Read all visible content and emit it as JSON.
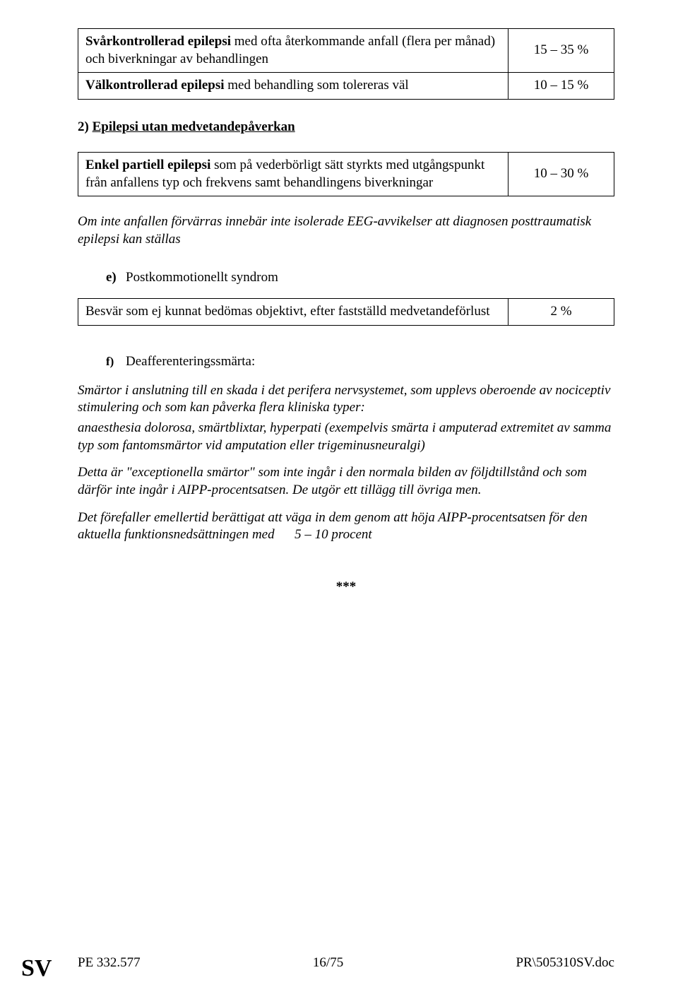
{
  "tables": {
    "t1": {
      "rows": [
        {
          "label_html": "<span class='bold'>Svårkontrollerad epilepsi</span> med ofta återkommande anfall (flera per månad) och biverkningar av behandlingen",
          "value": "15 – 35 %"
        },
        {
          "label_html": "<span class='bold'>Välkontrollerad epilepsi</span> med behandling som tolereras väl",
          "value": "10 – 15 %"
        }
      ]
    },
    "t2": {
      "rows": [
        {
          "label_html": "<span class='bold'>Enkel partiell epilepsi</span> som på vederbörligt sätt styrkts med utgångspunkt från anfallens typ och frekvens samt behandlingens biverkningar",
          "value": "10 – 30 %"
        }
      ]
    },
    "t3": {
      "rows": [
        {
          "label_html": "Besvär som ej kunnat bedömas objektivt, efter fastställd medvetandeförlust",
          "value": "2 %"
        }
      ]
    }
  },
  "headings": {
    "h2_prefix": "2) ",
    "h2_text": "Epilepsi utan medvetandepåverkan",
    "e_marker": "e)",
    "e_text": "Postkommotionellt syndrom",
    "f_marker": "f)",
    "f_text": "Deafferenteringssmärta:"
  },
  "italic_note": "Om inte anfallen förvärras innebär inte isolerade EEG-avvikelser att diagnosen posttraumatisk epilepsi kan ställas",
  "paras": {
    "p1": "Smärtor i anslutning till en skada i det perifera nervsystemet, som upplevs oberoende av nociceptiv stimulering och som kan påverka flera kliniska typer:",
    "p2": "anaesthesia dolorosa, smärtblixtar, hyperpati (exempelvis smärta i amputerad extremitet av samma typ som fantomsmärtor vid amputation eller trigeminusneuralgi)",
    "p3": "Detta är \"exceptionella smärtor\" som inte ingår i den normala bilden av följdtillstånd och som därför inte ingår i AIPP-procentsatsen. De utgör ett tillägg till övriga men.",
    "p4_a": "Det förefaller emellertid berättigat att väga in dem genom att höja AIPP-procentsatsen för den aktuella funktionsnedsättningen med",
    "p4_b": "5 – 10 procent"
  },
  "stars": "***",
  "footer": {
    "left": "PE 332.577",
    "center": "16/75",
    "right": "PR\\505310SV.doc"
  },
  "sv": "SV"
}
